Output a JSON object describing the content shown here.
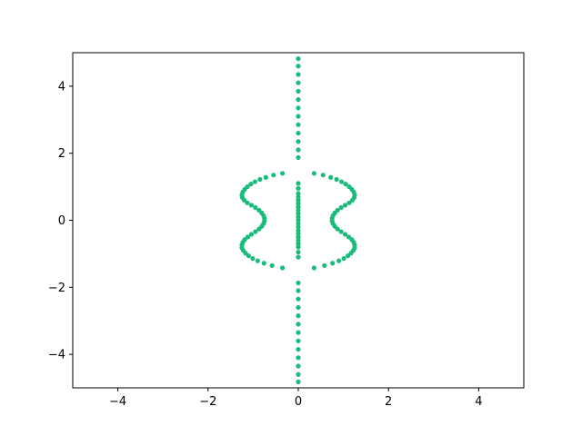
{
  "chart_data": {
    "type": "scatter",
    "title": "",
    "xlabel": "",
    "ylabel": "",
    "xlim": [
      -5,
      5
    ],
    "ylim": [
      -5,
      5
    ],
    "grid": false,
    "marker_color": "#1abc7c",
    "x_ticks": [
      -4,
      -2,
      0,
      2,
      4
    ],
    "y_ticks": [
      -4,
      -2,
      0,
      2,
      4
    ],
    "x_tick_labels": [
      "−4",
      "−2",
      "0",
      "2",
      "4"
    ],
    "y_tick_labels": [
      "−4",
      "−2",
      "0",
      "2",
      "4"
    ],
    "series": [
      {
        "points": [
          [
            0,
            4.82
          ],
          [
            0,
            4.6
          ],
          [
            0,
            4.35
          ],
          [
            0,
            4.1
          ],
          [
            0,
            3.85
          ],
          [
            0,
            3.6
          ],
          [
            0,
            3.35
          ],
          [
            0,
            3.1
          ],
          [
            0,
            2.85
          ],
          [
            0,
            2.6
          ],
          [
            0,
            2.35
          ],
          [
            0,
            2.1
          ],
          [
            0,
            1.87
          ],
          [
            0,
            -1.87
          ],
          [
            0,
            -2.1
          ],
          [
            0,
            -2.35
          ],
          [
            0,
            -2.6
          ],
          [
            0,
            -2.85
          ],
          [
            0,
            -3.1
          ],
          [
            0,
            -3.35
          ],
          [
            0,
            -3.6
          ],
          [
            0,
            -3.85
          ],
          [
            0,
            -4.1
          ],
          [
            0,
            -4.35
          ],
          [
            0,
            -4.6
          ],
          [
            0,
            -4.82
          ],
          [
            0,
            1.1
          ],
          [
            0,
            0.95
          ],
          [
            0,
            0.8
          ],
          [
            0,
            0.7
          ],
          [
            0,
            0.6
          ],
          [
            0,
            0.5
          ],
          [
            0,
            0.4
          ],
          [
            0,
            0.3
          ],
          [
            0,
            0.2
          ],
          [
            0,
            0.1
          ],
          [
            0,
            0.0
          ],
          [
            0,
            -0.1
          ],
          [
            0,
            -0.2
          ],
          [
            0,
            -0.3
          ],
          [
            0,
            -0.4
          ],
          [
            0,
            -0.5
          ],
          [
            0,
            -0.6
          ],
          [
            0,
            -0.7
          ],
          [
            0,
            -0.8
          ],
          [
            0,
            -0.95
          ],
          [
            0,
            -1.1
          ],
          [
            0.35,
            1.4
          ],
          [
            0.55,
            1.35
          ],
          [
            0.72,
            1.28
          ],
          [
            0.85,
            1.22
          ],
          [
            0.96,
            1.15
          ],
          [
            1.05,
            1.08
          ],
          [
            1.13,
            1.0
          ],
          [
            1.19,
            0.92
          ],
          [
            1.23,
            0.84
          ],
          [
            1.25,
            0.76
          ],
          [
            1.24,
            0.68
          ],
          [
            1.2,
            0.6
          ],
          [
            1.13,
            0.52
          ],
          [
            1.04,
            0.45
          ],
          [
            0.95,
            0.38
          ],
          [
            0.87,
            0.3
          ],
          [
            0.81,
            0.22
          ],
          [
            0.77,
            0.14
          ],
          [
            0.75,
            0.06
          ],
          [
            0.75,
            -0.02
          ],
          [
            0.77,
            -0.1
          ],
          [
            0.81,
            -0.18
          ],
          [
            0.87,
            -0.26
          ],
          [
            0.95,
            -0.34
          ],
          [
            1.04,
            -0.42
          ],
          [
            1.12,
            -0.5
          ],
          [
            1.19,
            -0.58
          ],
          [
            1.23,
            -0.66
          ],
          [
            1.25,
            -0.74
          ],
          [
            1.25,
            -0.82
          ],
          [
            1.22,
            -0.9
          ],
          [
            1.17,
            -0.98
          ],
          [
            1.1,
            -1.06
          ],
          [
            1.01,
            -1.14
          ],
          [
            0.9,
            -1.21
          ],
          [
            0.76,
            -1.28
          ],
          [
            0.58,
            -1.35
          ],
          [
            0.35,
            -1.42
          ],
          [
            -0.35,
            1.4
          ],
          [
            -0.55,
            1.35
          ],
          [
            -0.72,
            1.28
          ],
          [
            -0.85,
            1.22
          ],
          [
            -0.96,
            1.15
          ],
          [
            -1.05,
            1.08
          ],
          [
            -1.13,
            1.0
          ],
          [
            -1.19,
            0.92
          ],
          [
            -1.23,
            0.84
          ],
          [
            -1.25,
            0.76
          ],
          [
            -1.24,
            0.68
          ],
          [
            -1.2,
            0.6
          ],
          [
            -1.13,
            0.52
          ],
          [
            -1.04,
            0.45
          ],
          [
            -0.95,
            0.38
          ],
          [
            -0.87,
            0.3
          ],
          [
            -0.81,
            0.22
          ],
          [
            -0.77,
            0.14
          ],
          [
            -0.75,
            0.06
          ],
          [
            -0.75,
            -0.02
          ],
          [
            -0.77,
            -0.1
          ],
          [
            -0.81,
            -0.18
          ],
          [
            -0.87,
            -0.26
          ],
          [
            -0.95,
            -0.34
          ],
          [
            -1.04,
            -0.42
          ],
          [
            -1.12,
            -0.5
          ],
          [
            -1.19,
            -0.58
          ],
          [
            -1.23,
            -0.66
          ],
          [
            -1.25,
            -0.74
          ],
          [
            -1.25,
            -0.82
          ],
          [
            -1.22,
            -0.9
          ],
          [
            -1.17,
            -0.98
          ],
          [
            -1.1,
            -1.06
          ],
          [
            -1.01,
            -1.14
          ],
          [
            -0.9,
            -1.21
          ],
          [
            -0.76,
            -1.28
          ],
          [
            -0.58,
            -1.35
          ],
          [
            -0.35,
            -1.42
          ]
        ]
      }
    ]
  }
}
